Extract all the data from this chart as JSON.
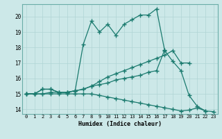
{
  "xlabel": "Humidex (Indice chaleur)",
  "bg_color": "#cce8e8",
  "line_color": "#1a7a6e",
  "xlim": [
    -0.5,
    23.5
  ],
  "ylim": [
    13.7,
    20.8
  ],
  "xticks": [
    0,
    1,
    2,
    3,
    4,
    5,
    6,
    7,
    8,
    9,
    10,
    11,
    12,
    13,
    14,
    15,
    16,
    17,
    18,
    19,
    20,
    21,
    22,
    23
  ],
  "yticks": [
    14,
    15,
    16,
    17,
    18,
    19,
    20
  ],
  "line1_x": [
    0,
    1,
    2,
    3,
    4,
    5,
    6,
    7,
    8,
    9,
    10,
    11,
    12,
    13,
    14,
    15,
    16,
    17,
    18,
    19,
    20,
    21,
    22
  ],
  "line1_y": [
    15.0,
    15.0,
    15.3,
    15.3,
    15.1,
    15.1,
    15.2,
    18.2,
    19.7,
    19.0,
    19.5,
    18.8,
    19.5,
    19.8,
    20.1,
    20.1,
    20.5,
    17.8,
    17.1,
    16.5,
    14.9,
    14.2,
    13.9
  ],
  "line2_x": [
    0,
    1,
    2,
    3,
    4,
    5,
    6,
    7,
    8,
    9,
    10,
    11,
    12,
    13,
    14,
    15,
    16,
    17,
    18,
    19,
    20
  ],
  "line2_y": [
    15.0,
    15.0,
    15.3,
    15.3,
    15.1,
    15.1,
    15.2,
    15.3,
    15.5,
    15.8,
    16.1,
    16.3,
    16.5,
    16.7,
    16.9,
    17.1,
    17.3,
    17.5,
    17.8,
    17.0,
    17.0
  ],
  "line3_x": [
    0,
    1,
    2,
    3,
    4,
    5,
    6,
    7,
    8,
    9,
    10,
    11,
    12,
    13,
    14,
    15,
    16,
    17
  ],
  "line3_y": [
    15.0,
    15.0,
    15.0,
    15.1,
    15.1,
    15.1,
    15.2,
    15.3,
    15.5,
    15.6,
    15.7,
    15.9,
    16.0,
    16.1,
    16.2,
    16.4,
    16.5,
    17.85
  ],
  "line4_x": [
    0,
    1,
    2,
    3,
    4,
    5,
    6,
    7,
    8,
    9,
    10,
    11,
    12,
    13,
    14,
    15,
    16,
    17,
    18,
    19,
    20,
    21,
    22,
    23
  ],
  "line4_y": [
    15.0,
    15.0,
    15.0,
    15.0,
    15.0,
    15.0,
    15.0,
    15.0,
    15.0,
    14.9,
    14.8,
    14.7,
    14.6,
    14.5,
    14.4,
    14.3,
    14.2,
    14.1,
    14.0,
    13.9,
    13.95,
    14.1,
    13.9,
    13.85
  ]
}
